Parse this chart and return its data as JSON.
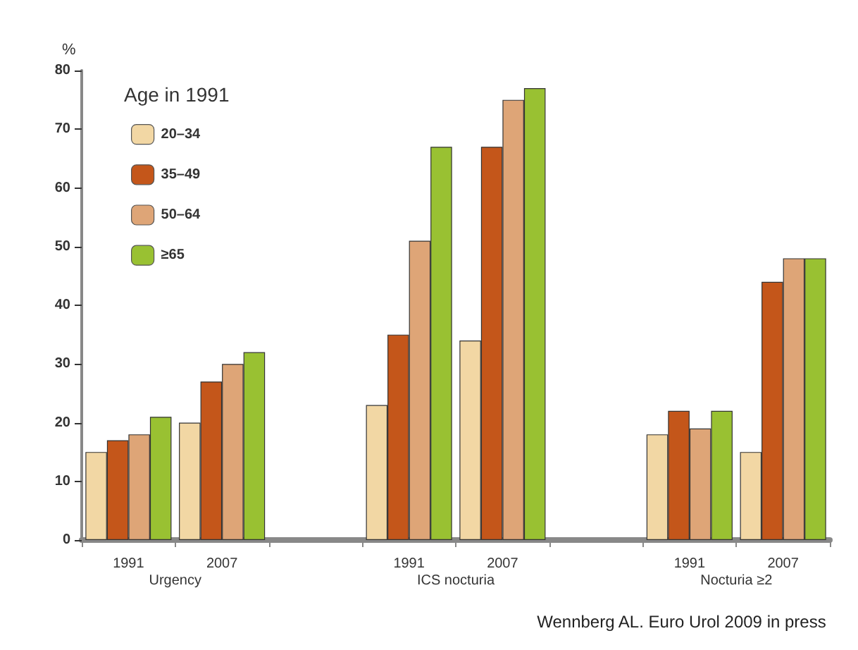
{
  "chart_data": {
    "type": "bar",
    "ylabel": "%",
    "legend_title": "Age in 1991",
    "categories": [
      "1991",
      "2007",
      null,
      "1991",
      "2007",
      null,
      "1991",
      "2007"
    ],
    "series": [
      {
        "name": "20–34",
        "color": "#f2d7a4",
        "values": [
          15,
          20,
          null,
          23,
          34,
          null,
          18,
          15
        ]
      },
      {
        "name": "35–49",
        "color": "#c4561a",
        "values": [
          17,
          27,
          null,
          35,
          67,
          null,
          22,
          44
        ]
      },
      {
        "name": "50–64",
        "color": "#dea577",
        "values": [
          18,
          30,
          null,
          51,
          75,
          null,
          19,
          48
        ]
      },
      {
        "name": "≥65",
        "color": "#99c132",
        "values": [
          21,
          32,
          null,
          67,
          77,
          null,
          22,
          48
        ]
      }
    ],
    "ylim": [
      0,
      80
    ],
    "yticks": [
      0,
      10,
      20,
      30,
      40,
      50,
      60,
      70,
      80
    ],
    "grid": false,
    "legend": "top left",
    "annotations": [
      "Urgency",
      "ICS nocturia",
      "Nocturia ≥2",
      "Wennberg AL. Euro Urol 2009 in press"
    ]
  }
}
